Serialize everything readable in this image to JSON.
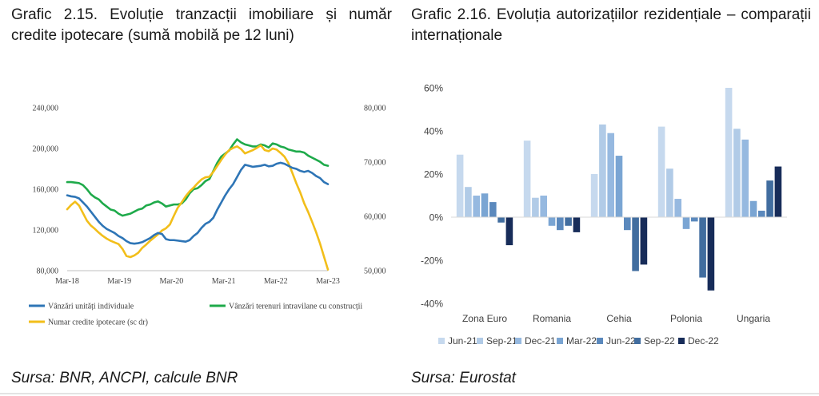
{
  "left": {
    "title": "Grafic 2.15. Evoluție tranzacții imobiliare și număr credite ipotecare (sumă mobilă pe 12 luni)",
    "source": "Sursa:  BNR, ANCPI, calcule BNR"
  },
  "right": {
    "title": "Grafic 2.16.  Evoluția autorizațiilor rezidențiale – comparații internaționale",
    "source": "Sursa: Eurostat"
  },
  "chart_data": [
    {
      "type": "line",
      "title": "Grafic 2.15. Evoluție tranzacții imobiliare și număr credite ipotecare (sumă mobilă pe 12 luni)",
      "x_ticks": [
        "Mar-18",
        "Mar-19",
        "Mar-20",
        "Mar-21",
        "Mar-22",
        "Mar-23"
      ],
      "x_start": "Mar-18",
      "x_end": "Mar-23",
      "y_left": {
        "ticks": [
          "80,000",
          "120,000",
          "160,000",
          "200,000",
          "240,000"
        ],
        "ylim": [
          80000,
          240000
        ]
      },
      "y_right": {
        "ticks": [
          "50,000",
          "60,000",
          "70,000",
          "80,000"
        ],
        "ylim": [
          50000,
          80000
        ]
      },
      "grid": false,
      "legend_position": "bottom",
      "series": [
        {
          "name": "Vânzări unități individuale",
          "axis": "left",
          "color": "#2e75b6",
          "values": [
            154000,
            153000,
            152500,
            151000,
            147000,
            143000,
            138000,
            133000,
            128000,
            124000,
            121000,
            119000,
            117000,
            114000,
            112000,
            109000,
            107000,
            106500,
            107000,
            108000,
            110000,
            112000,
            115000,
            117000,
            116000,
            111000,
            110000,
            110000,
            109500,
            109000,
            108500,
            110000,
            114000,
            117000,
            122000,
            126000,
            128000,
            132000,
            140000,
            147000,
            154000,
            160000,
            165000,
            172000,
            179000,
            184000,
            183000,
            182000,
            182500,
            183000,
            184000,
            182500,
            183000,
            185000,
            186000,
            185000,
            183000,
            181000,
            180000,
            178000,
            177000,
            178000,
            176000,
            173000,
            171000,
            167000,
            165000
          ]
        },
        {
          "name": "Vânzări terenuri intravilane cu construcții",
          "axis": "left",
          "color": "#1eaa4a",
          "values": [
            167000,
            167000,
            166500,
            166000,
            164000,
            160000,
            155000,
            152000,
            150000,
            146000,
            143000,
            140000,
            139000,
            136000,
            134000,
            135000,
            136000,
            138000,
            140000,
            141000,
            144000,
            145000,
            147000,
            148000,
            146000,
            143000,
            144000,
            145000,
            145000,
            146000,
            150000,
            156000,
            160000,
            161000,
            164000,
            168000,
            170000,
            178000,
            186000,
            192000,
            195000,
            198000,
            204000,
            209000,
            206000,
            204000,
            203000,
            202000,
            202000,
            204000,
            203000,
            201000,
            205000,
            204000,
            202000,
            201000,
            199000,
            198000,
            197000,
            197000,
            196000,
            193000,
            191000,
            189000,
            187000,
            184000,
            183000
          ]
        },
        {
          "name": "Numar credite ipotecare (sc dr)",
          "axis": "right",
          "color": "#f2be1a",
          "values": [
            61300,
            62100,
            62700,
            62000,
            60600,
            59200,
            58300,
            57700,
            57000,
            56400,
            55900,
            55500,
            55200,
            54900,
            54000,
            52700,
            52500,
            52800,
            53300,
            54200,
            54800,
            55500,
            56100,
            56700,
            57400,
            57800,
            58500,
            60100,
            61600,
            62600,
            63700,
            64600,
            65300,
            66100,
            66800,
            67200,
            67300,
            68200,
            69300,
            70400,
            71400,
            72200,
            72600,
            72900,
            72400,
            71600,
            71900,
            72200,
            72600,
            73100,
            72200,
            72000,
            72500,
            72300,
            71700,
            71000,
            69800,
            68000,
            66100,
            64400,
            62400,
            60800,
            59000,
            57100,
            55000,
            52600,
            50200
          ]
        }
      ]
    },
    {
      "type": "bar",
      "title": "Grafic 2.16.  Evoluția autorizațiilor rezidențiale – comparații internaționale",
      "categories": [
        "Zona Euro",
        "Romania",
        "Cehia",
        "Polonia",
        "Ungaria"
      ],
      "y_ticks": [
        "-40%",
        "-20%",
        "0%",
        "20%",
        "40%",
        "60%"
      ],
      "ylim": [
        -40,
        60
      ],
      "ylabel": "",
      "grid": false,
      "legend_position": "bottom",
      "series": [
        {
          "name": "Jun-21",
          "color": "#c6d9ee",
          "values": [
            29,
            35.5,
            20,
            42,
            60
          ]
        },
        {
          "name": "Sep-21",
          "color": "#b1cbe7",
          "values": [
            14,
            9,
            43,
            22.5,
            41
          ]
        },
        {
          "name": "Dec-21",
          "color": "#96b9e0",
          "values": [
            10,
            10,
            39,
            8.5,
            36
          ]
        },
        {
          "name": "Mar-22",
          "color": "#7aa5d3",
          "values": [
            11,
            -4,
            28.5,
            -5.5,
            7.5
          ]
        },
        {
          "name": "Jun-22",
          "color": "#5b89bd",
          "values": [
            7,
            -6,
            -6,
            -2,
            3
          ]
        },
        {
          "name": "Sep-22",
          "color": "#416d9f",
          "values": [
            -2.5,
            -4,
            -25,
            -28,
            17
          ]
        },
        {
          "name": "Dec-22",
          "color": "#172c59",
          "values": [
            -13,
            -7,
            -22,
            -34,
            23.5
          ]
        }
      ]
    }
  ]
}
